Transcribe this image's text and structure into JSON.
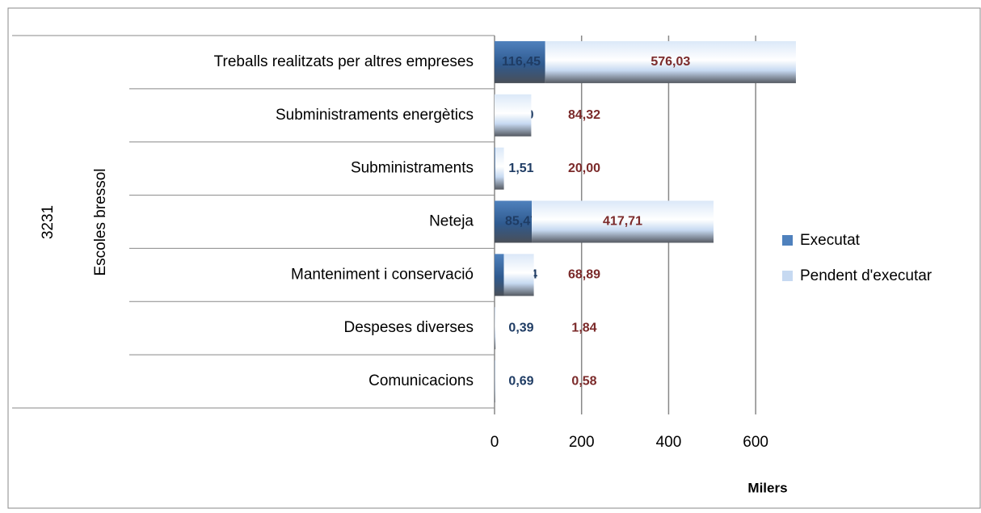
{
  "chart_data": {
    "type": "stacked-barh",
    "group_labels": [
      "3231",
      "Escoles bressol"
    ],
    "categories": [
      "Treballs realitzats per altres empreses",
      "Subministraments energètics",
      "Subministraments",
      "Neteja",
      "Manteniment i conservació",
      "Despeses diverses",
      "Comunicacions"
    ],
    "series": [
      {
        "name": "Executat",
        "color": "#4f81bd",
        "label_color": "#1f3c64",
        "values": [
          116.45,
          0.0,
          1.51,
          85.47,
          21.34,
          0.39,
          0.69
        ],
        "value_labels": [
          "116,45",
          "0,00",
          "1,51",
          "85,47",
          "21,34",
          "0,39",
          "0,69"
        ]
      },
      {
        "name": "Pendent d'executar",
        "color": "#c6d9f1",
        "label_color": "#7b2a2a",
        "values": [
          576.03,
          84.32,
          20.0,
          417.71,
          68.89,
          1.84,
          0.58
        ],
        "value_labels": [
          "576,03",
          "84,32",
          "20,00",
          "417,71",
          "68,89",
          "1,84",
          "0,58"
        ]
      }
    ],
    "xlabel": "Milers",
    "xlim": [
      0,
      700
    ],
    "xticks": [
      0,
      200,
      400,
      600
    ],
    "grid": true,
    "legend": "right"
  }
}
